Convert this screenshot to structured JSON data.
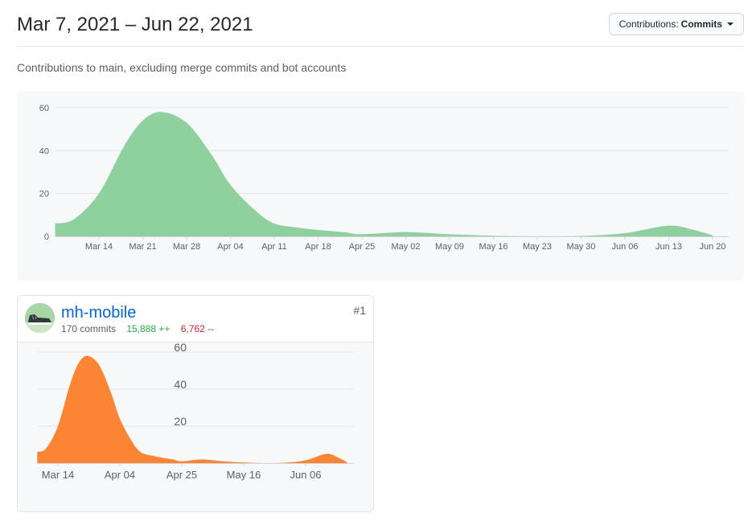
{
  "header": {
    "date_range": "Mar 7, 2021 – Jun 22, 2021",
    "contrib_label": "Contributions:",
    "contrib_value": "Commits"
  },
  "subtitle": "Contributions to main, excluding merge commits and bot accounts",
  "colors": {
    "main_area": "#8fd19e",
    "repo_area": "#fb8532",
    "grid": "#e1e4e8"
  },
  "chart_data": [
    {
      "type": "area",
      "ylim": [
        0,
        60
      ],
      "yticks": [
        0,
        20,
        40,
        60
      ],
      "x_labels": [
        "Mar 14",
        "Mar 21",
        "Mar 28",
        "Apr 04",
        "Apr 11",
        "Apr 18",
        "Apr 25",
        "May 02",
        "May 09",
        "May 16",
        "May 23",
        "May 30",
        "Jun 06",
        "Jun 13",
        "Jun 20"
      ],
      "x_start": "2021-03-07",
      "x": [
        "2021-03-07",
        "2021-03-10",
        "2021-03-14",
        "2021-03-18",
        "2021-03-21",
        "2021-03-24",
        "2021-03-28",
        "2021-04-01",
        "2021-04-04",
        "2021-04-08",
        "2021-04-11",
        "2021-04-15",
        "2021-04-18",
        "2021-04-22",
        "2021-04-25",
        "2021-05-02",
        "2021-05-09",
        "2021-05-16",
        "2021-05-23",
        "2021-05-30",
        "2021-06-06",
        "2021-06-13",
        "2021-06-17",
        "2021-06-20"
      ],
      "values": [
        6,
        8,
        20,
        42,
        54,
        58,
        53,
        38,
        24,
        12,
        6,
        4,
        3,
        2,
        1,
        2,
        1,
        0.3,
        0,
        0.2,
        1.5,
        5,
        3,
        0.5
      ],
      "series": [
        {
          "values_ref": "values"
        }
      ]
    },
    {
      "type": "area",
      "ylim": [
        0,
        60
      ],
      "yticks": [
        20,
        40,
        60
      ],
      "x_labels": [
        "Mar 14",
        "Apr 04",
        "Apr 25",
        "May 16",
        "Jun 06"
      ],
      "x_start": "2021-03-07",
      "x": [
        "2021-03-07",
        "2021-03-10",
        "2021-03-14",
        "2021-03-18",
        "2021-03-21",
        "2021-03-24",
        "2021-03-28",
        "2021-04-01",
        "2021-04-04",
        "2021-04-08",
        "2021-04-11",
        "2021-04-15",
        "2021-04-18",
        "2021-04-22",
        "2021-04-25",
        "2021-05-02",
        "2021-05-09",
        "2021-05-16",
        "2021-05-23",
        "2021-05-30",
        "2021-06-06",
        "2021-06-13",
        "2021-06-17",
        "2021-06-20"
      ],
      "values": [
        6,
        8,
        20,
        42,
        54,
        58,
        53,
        38,
        24,
        12,
        6,
        4,
        3,
        2,
        1,
        2,
        1,
        0.3,
        0,
        0.2,
        1.5,
        5,
        3,
        0.5
      ]
    }
  ],
  "contributor": {
    "name": "mh-mobile",
    "commits": "170 commits",
    "additions": "15,888 ++",
    "deletions": "6,762 --",
    "rank": "#1",
    "avatar_icon": "sneaker-avatar-icon"
  }
}
